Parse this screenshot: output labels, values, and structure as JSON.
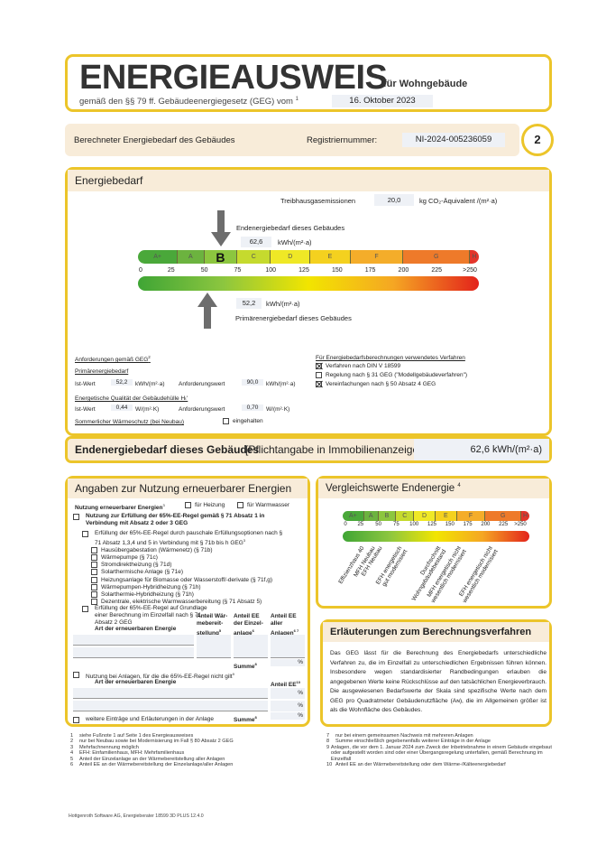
{
  "header": {
    "title": "ENERGIEAUSWEIS",
    "subtitle": "für Wohngebäude",
    "law": "gemäß den §§ 79 ff. Gebäudeenergiegesetz (GEG) vom",
    "law_sup": "1",
    "date": "16. Oktober 2023"
  },
  "subheader": {
    "label": "Berechneter Energiebedarf des Gebäudes",
    "reg_label": "Registriernummer:",
    "reg_number": "NI-2024-005236059",
    "page": "2"
  },
  "energiebedarf": {
    "title": "Energiebedarf",
    "ghg_label": "Treibhausgasemissionen",
    "ghg_value": "20,0",
    "ghg_unit": "kg CO₂-Äquivalent /(m²·a)",
    "end_label": "Endenergiebedarf dieses Gebäudes",
    "end_value": "62,6",
    "end_unit": "kWh/(m²·a)",
    "end_numeric": 62.6,
    "prim_label": "Primärenergiebedarf dieses Gebäudes",
    "prim_value": "52,2",
    "prim_unit": "kWh/(m²·a)",
    "prim_numeric": 52.2,
    "current_class": "B",
    "classes": [
      {
        "label": "A+",
        "from": 0,
        "to": 30
      },
      {
        "label": "A",
        "from": 30,
        "to": 50
      },
      {
        "label": "B",
        "from": 50,
        "to": 75
      },
      {
        "label": "C",
        "from": 75,
        "to": 100
      },
      {
        "label": "D",
        "from": 100,
        "to": 130
      },
      {
        "label": "E",
        "from": 130,
        "to": 160
      },
      {
        "label": "F",
        "from": 160,
        "to": 200
      },
      {
        "label": "G",
        "from": 200,
        "to": 250
      },
      {
        "label": "H",
        "from": 250,
        "to": 265
      }
    ],
    "ticks": [
      "0",
      "25",
      "50",
      "75",
      "100",
      "125",
      "150",
      "175",
      "200",
      "225",
      ">250"
    ],
    "colors": [
      "#4aa83a",
      "#6cb33f",
      "#8cc63f",
      "#c5da2e",
      "#efe826",
      "#f4d11f",
      "#f4ad2a",
      "#ee7a2a",
      "#e3352a"
    ]
  },
  "anforderungen": {
    "title": "Anforderungen gemäß GEG",
    "title_sup": "2",
    "prim_title": "Primärenergiebedarf",
    "ist": "Ist-Wert",
    "prim_ist": "52,2",
    "unit_kwh": "kWh/(m²·a)",
    "anf": "Anforderungswert",
    "prim_anf": "90,0",
    "ht_title": "Energetische Qualität der Gebäudehülle Hₜ'",
    "ht_ist": "0,44",
    "unit_w": "W/(m²·K)",
    "ht_anf": "0,70",
    "sommer": "Sommerlicher Wärmeschutz (bei Neubau)",
    "eingehalten": "eingehalten"
  },
  "verfahren": {
    "title": "Für Energiebedarfsberechnungen verwendetes Verfahren",
    "items": [
      {
        "label": "Verfahren nach DIN V 18599",
        "checked": true
      },
      {
        "label": "Regelung nach § 31 GEG (\"Modellgebäudeverfahren\")",
        "checked": false
      },
      {
        "label": "Vereinfachungen nach § 50 Absatz 4 GEG",
        "checked": true
      }
    ]
  },
  "endbar": {
    "label": "Endenergiebedarf dieses Gebäudes",
    "note": "[Pflichtangabe in Immobilienanzeigen]",
    "value": "62,6 kWh/(m²·a)"
  },
  "ee": {
    "title": "Angaben zur Nutzung erneuerbarer Energien",
    "nutzung": "Nutzung erneuerbarer Energien",
    "nutzung_sup": "3",
    "heizung": "für Heizung",
    "warmwasser": "für Warmwasser",
    "regel1": "Nutzung zur Erfüllung der 65%-EE-Regel gemäß § 71 Absatz 1 in Verbindung mit Absatz 2 oder 3 GEG",
    "pauschal": "Erfüllung der 65%-EE-Regel durch pauschale Erfüllungsoptionen nach § 71 Absatz 1,3,4 und 5 in Verbindung mit § 71b bis h GEG",
    "pauschal_sup": "3",
    "options": [
      "Hausübergabestation (Wärmenetz) (§ 71b)",
      "Wärmepumpe (§ 71c)",
      "Stromdirektheizung (§ 71d)",
      "Solarthermische Anlage (§ 71e)",
      "Heizungsanlage für Biomasse oder Wasserstoff/-derivate (§ 71f,g)",
      "Wärmepumpen-Hybridheizung (§ 71h)",
      "Solarthermie-Hybridheizung (§ 71h)",
      "Dezentrale, elektrische Warmwasserbereitung (§ 71 Absatz 5)"
    ],
    "einzelfall": "Erfüllung der 65%-EE-Regel auf Grundlage einer Berechnung im Einzelfall nach § 71 Absatz 2 GEG",
    "col_art": "Art der erneuerbaren Energie",
    "col_waerme": "Anteil Wär-mebereit-stellung",
    "col_waerme_sup": "5",
    "col_einzel": "Anteil EE der Einzel-anlage",
    "col_einzel_sup": "6",
    "col_alle": "Anteil EE aller Anlagen",
    "col_alle_sup": "6 7",
    "summe": "Summe",
    "summe_sup": "8",
    "pct": "%",
    "nicht": "Nutzung bei Anlagen, für die die 65%-EE-Regel nicht gilt",
    "nicht_sup": "9",
    "anteil_ee": "Anteil EE",
    "anteil_ee_sup": "10",
    "weitere": "weitere Einträge und Erläuterungen in der Anlage"
  },
  "vergleich": {
    "title": "Vergleichswerte Endenergie",
    "title_sup": "4",
    "refs": [
      {
        "label": "Effizienzhaus 40",
        "value": 25
      },
      {
        "label": "MFH Neubau",
        "value": 40
      },
      {
        "label": "EFH Neubau",
        "value": 50
      },
      {
        "label": "EFH energetisch\ngut modernisiert",
        "value": 78
      },
      {
        "label": "Durchschnitt\nWohngebäudebestand",
        "value": 132
      },
      {
        "label": "MFH energetisch nicht\nwesentlich modernisiert",
        "value": 160
      },
      {
        "label": "EFH energetisch nicht\nwesentlich modernisiert",
        "value": 205
      }
    ]
  },
  "erlaeuterung": {
    "title": "Erläuterungen zum Berechnungsverfahren",
    "text": "Das GEG lässt für die Berechnung des Energiebedarfs unterschiedliche Verfahren zu, die im Einzelfall zu unterschiedlichen Ergebnissen führen können. Insbesondere wegen standardisierter Randbedingungen erlauben die angegebenen Werte keine Rückschlüsse auf den tatsächlichen Energieverbrauch. Die ausgewiesenen Bedarfswerte der Skala sind spezifische Werte nach dem GEG pro Quadratmeter Gebäudenutzfläche (Aɴ), die im Allgemeinen größer ist als die Wohnfläche des Gebäudes."
  },
  "footnotes_left": [
    [
      "1",
      "siehe Fußnote 1 auf Seite 1 des Energieausweises"
    ],
    [
      "2",
      "nur bei Neubau sowie bei Modernisierung im Fall § 80 Absatz 2 GEG"
    ],
    [
      "3",
      "Mehrfachnennung möglich"
    ],
    [
      "4",
      "EFH: Einfamilienhaus, MFH: Mehrfamilienhaus"
    ],
    [
      "5",
      "Anteil der Einzelanlage an der Wärmebereitstellung aller Anlagen"
    ],
    [
      "6",
      "Anteil EE an der Wärmebereitstellung der Einzelanlage/aller Anlagen"
    ]
  ],
  "footnotes_right": [
    [
      "7",
      "nur bei einem gemeinsamen Nachweis mit mehreren Anlagen"
    ],
    [
      "8",
      "Summe einschließlich gegebenenfalls weiterer Einträge in der Anlage"
    ],
    [
      "9",
      "Anlagen, die vor dem 1. Januar 2024 zum Zweck der Inbetriebnahme in einem Gebäude eingebaut oder aufgestellt worden sind oder einer Übergangsregelung unterfallen, gemäß Berechnung im Einzelfall"
    ],
    [
      "10",
      "Anteil EE an der Wärmebereitstellung oder dem Wärme-/Kälteenergiebedarf"
    ]
  ],
  "footer": "Hottgenroth Software AG, Energieberater 18599 3D PLUS 12.4.0"
}
